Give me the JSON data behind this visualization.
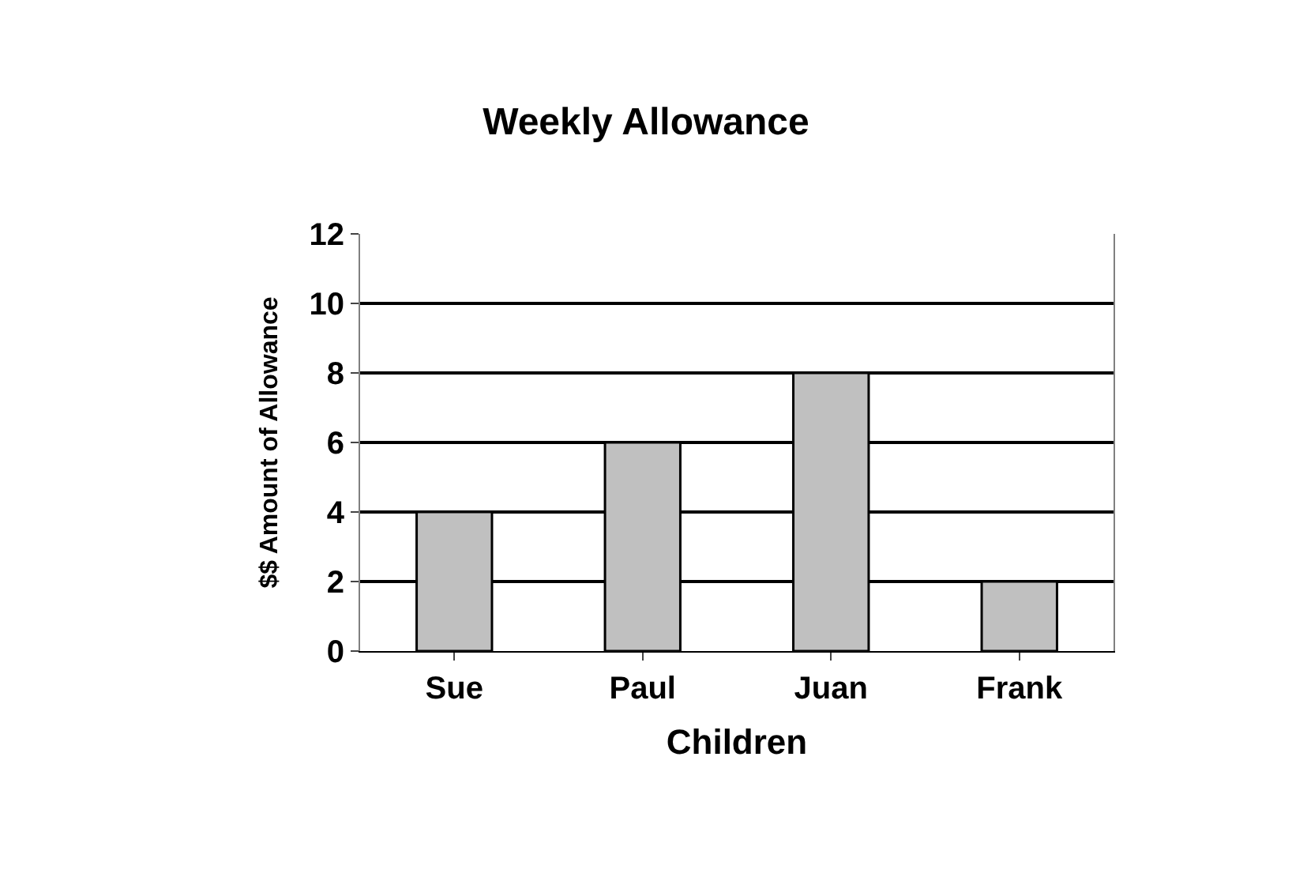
{
  "chart_data": {
    "type": "bar",
    "title": "Weekly Allowance",
    "xlabel": "Children",
    "ylabel": "$$ Amount of Allowance",
    "categories": [
      "Sue",
      "Paul",
      "Juan",
      "Frank"
    ],
    "values": [
      4,
      6,
      8,
      2
    ],
    "color": "#c0c0c0",
    "ylim": [
      0,
      12
    ],
    "yticks": [
      0,
      2,
      4,
      6,
      8,
      10,
      12
    ],
    "grid": "y"
  }
}
